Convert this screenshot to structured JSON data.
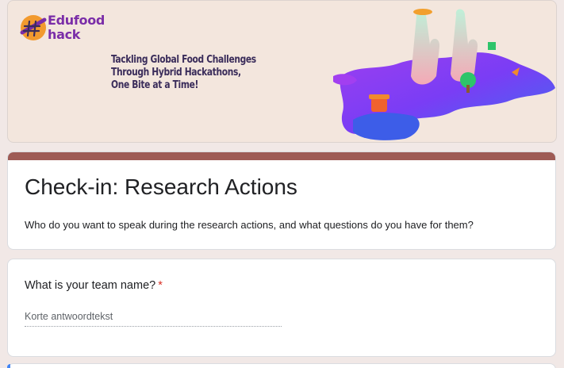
{
  "banner": {
    "logo_line1": "Edufood",
    "logo_line2": "hack",
    "tagline": [
      "Tackling Global Food Challenges",
      "Through Hybrid Hackathons,",
      "One Bite at a Time!"
    ]
  },
  "form": {
    "title": "Check-in: Research Actions",
    "description": "Who do you want to speak during the research actions, and what questions do you have for them?"
  },
  "questions": [
    {
      "title": "What is your team name?",
      "required_mark": "*",
      "placeholder": "Korte antwoordtekst"
    }
  ],
  "colors": {
    "theme_accent": "#9e5b55",
    "page_background": "#f1e8e6",
    "required": "#d93025",
    "logo_purple": "#7a2da8"
  }
}
